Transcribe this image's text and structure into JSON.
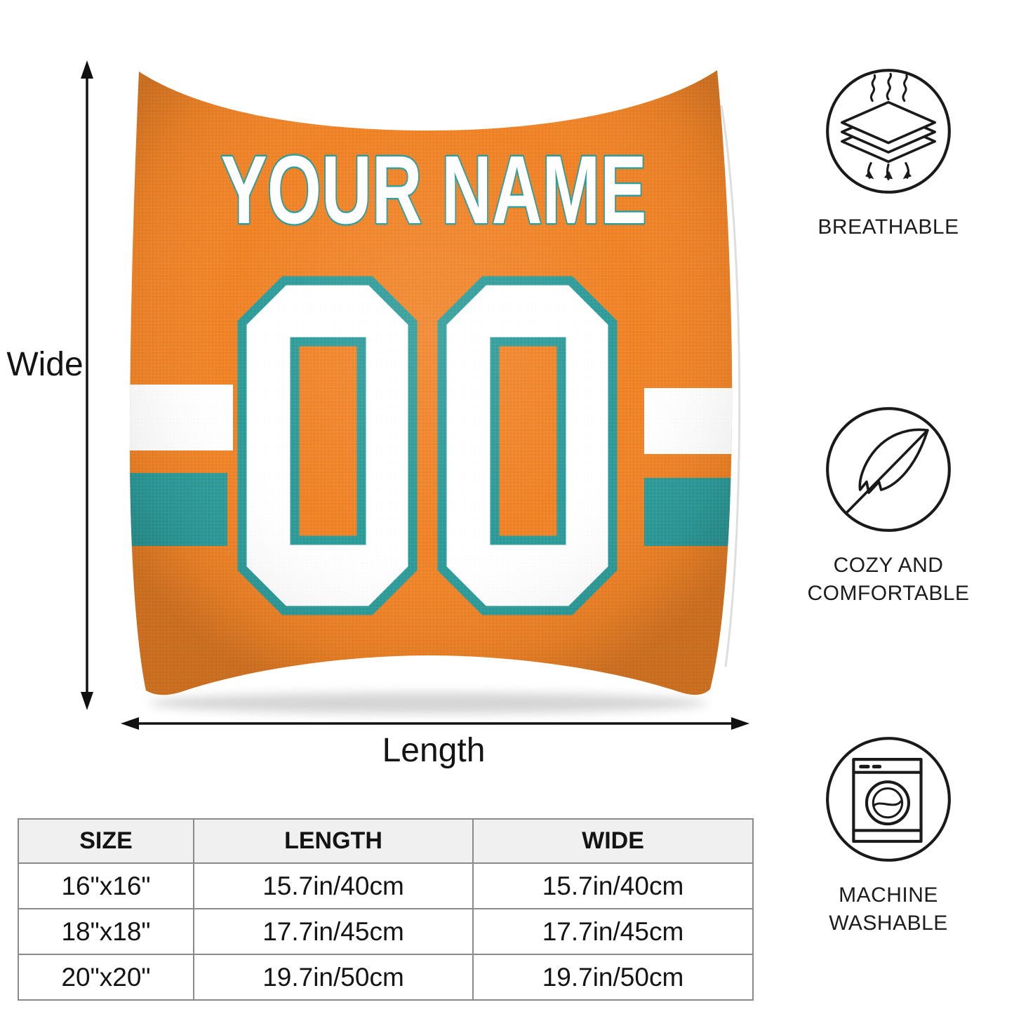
{
  "pillow": {
    "name_text": "YOUR NAME",
    "number_text": "00",
    "colors": {
      "orange": "#EF8124",
      "teal": "#2A9A98",
      "white": "#FFFFFF"
    }
  },
  "dimensions": {
    "wide_label": "Wide",
    "length_label": "Length"
  },
  "features": [
    {
      "icon": "breathable-layers-icon",
      "label": "BREATHABLE"
    },
    {
      "icon": "feather-icon",
      "label": "COZY AND COMFORTABLE"
    },
    {
      "icon": "washing-machine-icon",
      "label": "MACHINE WASHABLE"
    }
  ],
  "size_table": {
    "headers": [
      "SIZE",
      "LENGTH",
      "WIDE"
    ],
    "rows": [
      [
        "16\"x16\"",
        "15.7in/40cm",
        "15.7in/40cm"
      ],
      [
        "18\"x18\"",
        "17.7in/45cm",
        "17.7in/45cm"
      ],
      [
        "20\"x20\"",
        "19.7in/50cm",
        "19.7in/50cm"
      ]
    ]
  }
}
